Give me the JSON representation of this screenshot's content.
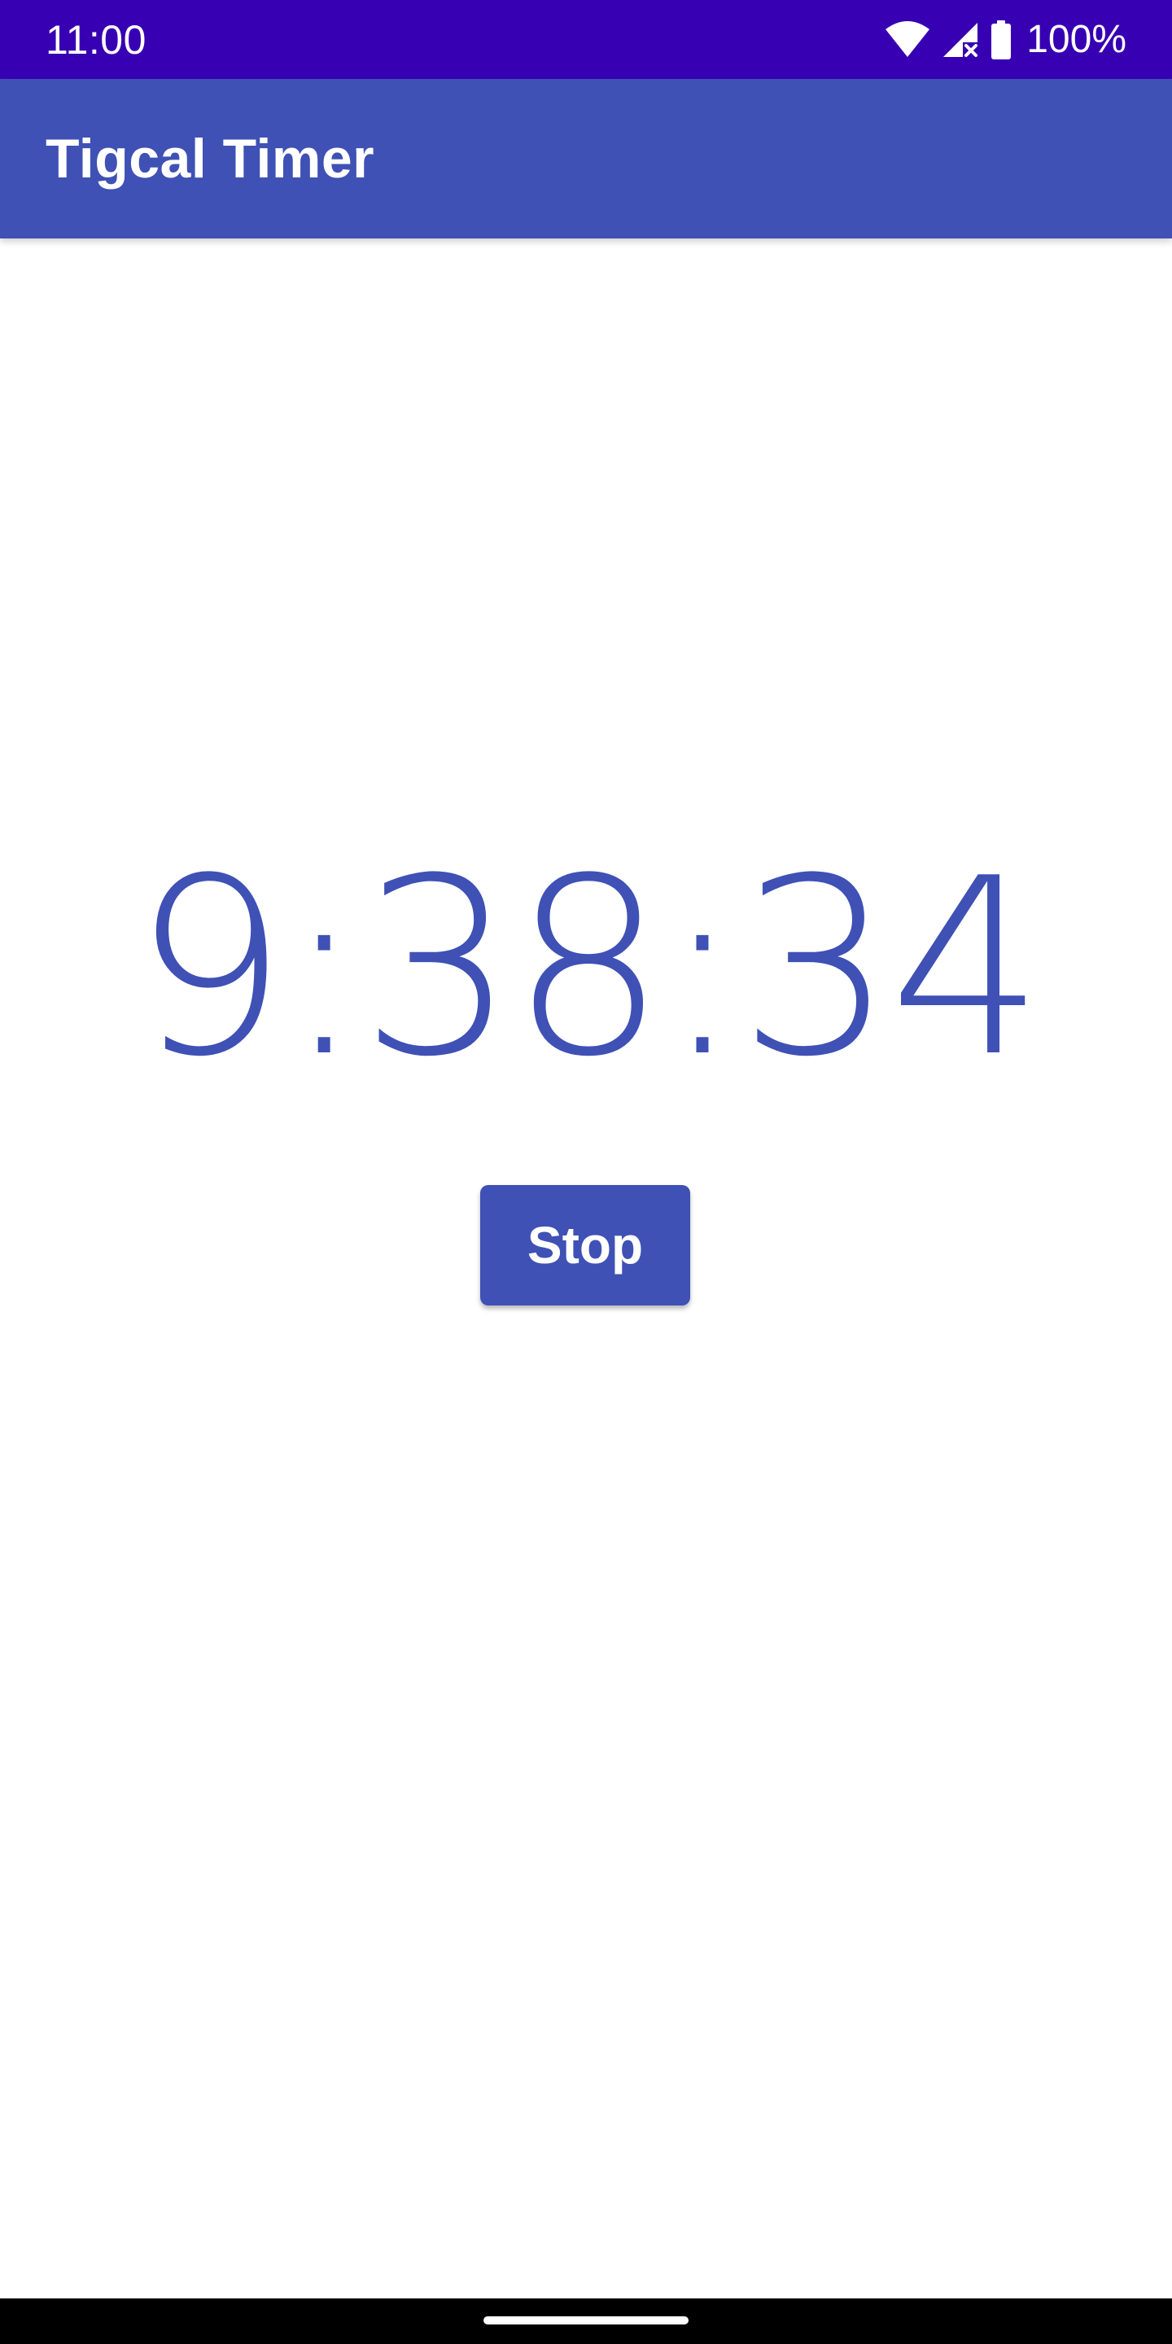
{
  "status_bar": {
    "time": "11:00",
    "battery": "100%",
    "icons": [
      "wifi-icon",
      "signal-no-service-icon",
      "battery-icon"
    ]
  },
  "app_bar": {
    "title": "Tigcal Timer"
  },
  "timer": {
    "display": "9:38:34"
  },
  "controls": {
    "stop_label": "Stop"
  },
  "colors": {
    "status_bar": "#3700b3",
    "primary": "#3f51b5",
    "background": "#ffffff",
    "nav_bar": "#000000"
  }
}
